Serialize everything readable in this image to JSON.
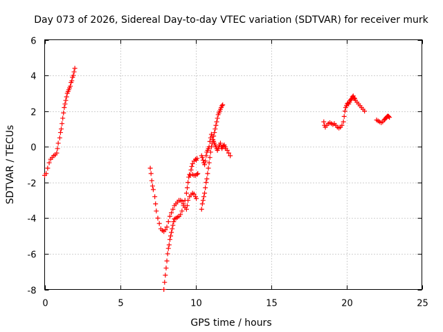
{
  "chart_data": {
    "type": "scatter",
    "title": "Day 073 of 2026, Sidereal Day-to-day VTEC variation (SDTVAR) for receiver murk",
    "xlabel": "GPS time / hours",
    "ylabel": "SDTVAR / TECUs",
    "xlim": [
      0,
      25
    ],
    "ylim": [
      -8,
      6
    ],
    "xticks": [
      0,
      5,
      10,
      15,
      20,
      25
    ],
    "yticks": [
      -8,
      -6,
      -4,
      -2,
      0,
      2,
      4,
      6
    ],
    "grid": true,
    "marker": "plus",
    "color": "#ff0000",
    "segments": [
      [
        [
          0.0,
          -1.6
        ],
        [
          0.1,
          -1.5
        ],
        [
          0.2,
          -1.2
        ],
        [
          0.3,
          -0.9
        ],
        [
          0.4,
          -0.7
        ],
        [
          0.5,
          -0.6
        ],
        [
          0.6,
          -0.5
        ],
        [
          0.7,
          -0.45
        ],
        [
          0.8,
          -0.35
        ],
        [
          0.85,
          -0.1
        ],
        [
          0.9,
          0.2
        ],
        [
          1.0,
          0.5
        ],
        [
          1.05,
          0.8
        ],
        [
          1.1,
          1.0
        ],
        [
          1.15,
          1.3
        ],
        [
          1.2,
          1.6
        ],
        [
          1.25,
          1.9
        ],
        [
          1.3,
          2.2
        ],
        [
          1.35,
          2.4
        ],
        [
          1.4,
          2.6
        ],
        [
          1.45,
          2.8
        ],
        [
          1.5,
          3.0
        ],
        [
          1.55,
          3.1
        ],
        [
          1.6,
          3.2
        ],
        [
          1.65,
          3.3
        ],
        [
          1.7,
          3.4
        ],
        [
          1.75,
          3.6
        ],
        [
          1.8,
          3.7
        ],
        [
          1.85,
          3.9
        ],
        [
          1.9,
          4.0
        ],
        [
          1.95,
          4.2
        ],
        [
          2.0,
          4.4
        ]
      ],
      [
        [
          7.0,
          -1.2
        ],
        [
          7.05,
          -1.5
        ],
        [
          7.1,
          -1.9
        ],
        [
          7.15,
          -2.2
        ],
        [
          7.2,
          -2.4
        ],
        [
          7.3,
          -2.8
        ],
        [
          7.35,
          -3.2
        ],
        [
          7.4,
          -3.6
        ],
        [
          7.5,
          -4.0
        ],
        [
          7.6,
          -4.3
        ],
        [
          7.7,
          -4.6
        ],
        [
          7.8,
          -4.7
        ],
        [
          7.9,
          -4.75
        ],
        [
          8.0,
          -4.65
        ],
        [
          8.1,
          -4.5
        ],
        [
          8.2,
          -4.2
        ],
        [
          8.3,
          -3.9
        ],
        [
          8.4,
          -3.7
        ],
        [
          8.5,
          -3.5
        ],
        [
          8.6,
          -3.3
        ],
        [
          8.7,
          -3.2
        ],
        [
          8.8,
          -3.1
        ],
        [
          8.9,
          -3.0
        ],
        [
          9.0,
          -3.0
        ],
        [
          9.1,
          -3.05
        ],
        [
          9.2,
          -3.2
        ],
        [
          9.3,
          -3.4
        ],
        [
          9.4,
          -3.5
        ],
        [
          9.45,
          -3.3
        ],
        [
          9.5,
          -3.0
        ],
        [
          9.6,
          -2.8
        ],
        [
          9.7,
          -2.7
        ],
        [
          9.8,
          -2.6
        ],
        [
          9.9,
          -2.65
        ],
        [
          10.0,
          -2.8
        ],
        [
          10.05,
          -2.9
        ]
      ],
      [
        [
          7.9,
          -8.0
        ],
        [
          7.95,
          -7.6
        ],
        [
          8.0,
          -7.2
        ],
        [
          8.05,
          -6.8
        ],
        [
          8.1,
          -6.4
        ],
        [
          8.15,
          -6.0
        ],
        [
          8.2,
          -5.7
        ],
        [
          8.25,
          -5.5
        ],
        [
          8.3,
          -5.2
        ],
        [
          8.35,
          -5.0
        ],
        [
          8.4,
          -4.8
        ],
        [
          8.45,
          -4.6
        ],
        [
          8.5,
          -4.4
        ],
        [
          8.55,
          -4.2
        ],
        [
          8.6,
          -4.05
        ],
        [
          8.7,
          -4.0
        ],
        [
          8.8,
          -3.95
        ],
        [
          8.9,
          -3.9
        ],
        [
          9.0,
          -3.8
        ],
        [
          9.1,
          -3.6
        ],
        [
          9.2,
          -3.3
        ],
        [
          9.3,
          -3.0
        ],
        [
          9.4,
          -2.6
        ],
        [
          9.45,
          -2.3
        ],
        [
          9.5,
          -2.0
        ],
        [
          9.55,
          -1.7
        ],
        [
          9.6,
          -1.55
        ],
        [
          9.65,
          -1.6
        ],
        [
          9.7,
          -1.3
        ],
        [
          9.75,
          -1.1
        ],
        [
          9.8,
          -0.95
        ],
        [
          9.9,
          -0.8
        ],
        [
          10.0,
          -0.7
        ],
        [
          10.05,
          -0.75
        ],
        [
          10.1,
          -0.65
        ],
        [
          9.8,
          -1.55
        ],
        [
          9.9,
          -1.6
        ],
        [
          10.0,
          -1.6
        ],
        [
          10.1,
          -1.55
        ],
        [
          10.15,
          -1.5
        ]
      ],
      [
        [
          10.4,
          -0.5
        ],
        [
          10.45,
          -0.6
        ],
        [
          10.5,
          -0.75
        ],
        [
          10.55,
          -0.9
        ],
        [
          10.6,
          -1.0
        ],
        [
          10.65,
          -0.8
        ],
        [
          10.7,
          -0.5
        ],
        [
          10.75,
          -0.3
        ],
        [
          10.8,
          -0.2
        ],
        [
          10.85,
          -0.1
        ],
        [
          10.9,
          0.0
        ],
        [
          10.95,
          0.3
        ],
        [
          11.0,
          0.5
        ],
        [
          11.05,
          0.7
        ],
        [
          11.1,
          0.6
        ],
        [
          11.15,
          0.4
        ],
        [
          11.2,
          0.3
        ],
        [
          11.25,
          0.2
        ],
        [
          11.3,
          0.1
        ],
        [
          11.35,
          0.0
        ],
        [
          11.4,
          -0.1
        ],
        [
          11.45,
          -0.2
        ],
        [
          11.5,
          -0.1
        ],
        [
          11.55,
          0.0
        ],
        [
          11.6,
          0.1
        ],
        [
          11.65,
          0.2
        ],
        [
          11.7,
          0.0
        ],
        [
          11.75,
          -0.1
        ],
        [
          11.8,
          0.0
        ],
        [
          11.85,
          0.05
        ],
        [
          11.9,
          0.1
        ],
        [
          11.95,
          0.0
        ],
        [
          12.0,
          -0.1
        ],
        [
          12.1,
          -0.2
        ],
        [
          12.2,
          -0.35
        ],
        [
          12.3,
          -0.5
        ]
      ],
      [
        [
          10.4,
          -3.5
        ],
        [
          10.45,
          -3.2
        ],
        [
          10.5,
          -3.0
        ],
        [
          10.55,
          -2.8
        ],
        [
          10.6,
          -2.6
        ],
        [
          10.65,
          -2.3
        ],
        [
          10.7,
          -2.0
        ],
        [
          10.75,
          -1.8
        ],
        [
          10.8,
          -1.5
        ],
        [
          10.85,
          -1.2
        ],
        [
          10.9,
          -0.9
        ],
        [
          10.95,
          -0.6
        ],
        [
          11.0,
          -0.3
        ],
        [
          11.05,
          0.0
        ],
        [
          11.1,
          0.2
        ],
        [
          11.15,
          0.4
        ],
        [
          11.2,
          0.6
        ],
        [
          11.25,
          0.8
        ],
        [
          11.3,
          1.0
        ],
        [
          11.35,
          1.2
        ],
        [
          11.4,
          1.4
        ],
        [
          11.45,
          1.6
        ],
        [
          11.5,
          1.8
        ],
        [
          11.55,
          1.9
        ],
        [
          11.6,
          2.0
        ],
        [
          11.65,
          2.1
        ],
        [
          11.7,
          2.2
        ],
        [
          11.75,
          2.3
        ],
        [
          11.8,
          2.35
        ]
      ],
      [
        [
          18.5,
          1.4
        ],
        [
          18.55,
          1.2
        ],
        [
          18.6,
          1.1
        ],
        [
          18.7,
          1.2
        ],
        [
          18.8,
          1.3
        ],
        [
          18.9,
          1.35
        ],
        [
          19.0,
          1.3
        ],
        [
          19.1,
          1.25
        ],
        [
          19.2,
          1.3
        ],
        [
          19.3,
          1.2
        ],
        [
          19.4,
          1.1
        ],
        [
          19.5,
          1.05
        ],
        [
          19.6,
          1.1
        ],
        [
          19.7,
          1.2
        ],
        [
          19.8,
          1.4
        ],
        [
          19.85,
          1.7
        ],
        [
          19.9,
          2.0
        ],
        [
          19.95,
          2.2
        ],
        [
          20.0,
          2.3
        ],
        [
          20.05,
          2.4
        ],
        [
          20.1,
          2.45
        ],
        [
          20.15,
          2.4
        ],
        [
          20.2,
          2.5
        ],
        [
          20.25,
          2.6
        ],
        [
          20.3,
          2.65
        ],
        [
          20.35,
          2.7
        ],
        [
          20.4,
          2.8
        ],
        [
          20.45,
          2.85
        ],
        [
          20.5,
          2.75
        ],
        [
          20.55,
          2.7
        ],
        [
          20.6,
          2.6
        ],
        [
          20.7,
          2.5
        ],
        [
          20.8,
          2.4
        ],
        [
          20.9,
          2.3
        ],
        [
          21.0,
          2.2
        ],
        [
          21.1,
          2.1
        ],
        [
          21.2,
          2.0
        ]
      ],
      [
        [
          22.0,
          1.5
        ],
        [
          22.1,
          1.45
        ],
        [
          22.2,
          1.4
        ],
        [
          22.3,
          1.35
        ],
        [
          22.4,
          1.4
        ],
        [
          22.5,
          1.5
        ],
        [
          22.55,
          1.55
        ],
        [
          22.6,
          1.6
        ],
        [
          22.65,
          1.65
        ],
        [
          22.7,
          1.7
        ],
        [
          22.75,
          1.72
        ],
        [
          22.8,
          1.7
        ],
        [
          22.85,
          1.65
        ]
      ]
    ]
  }
}
